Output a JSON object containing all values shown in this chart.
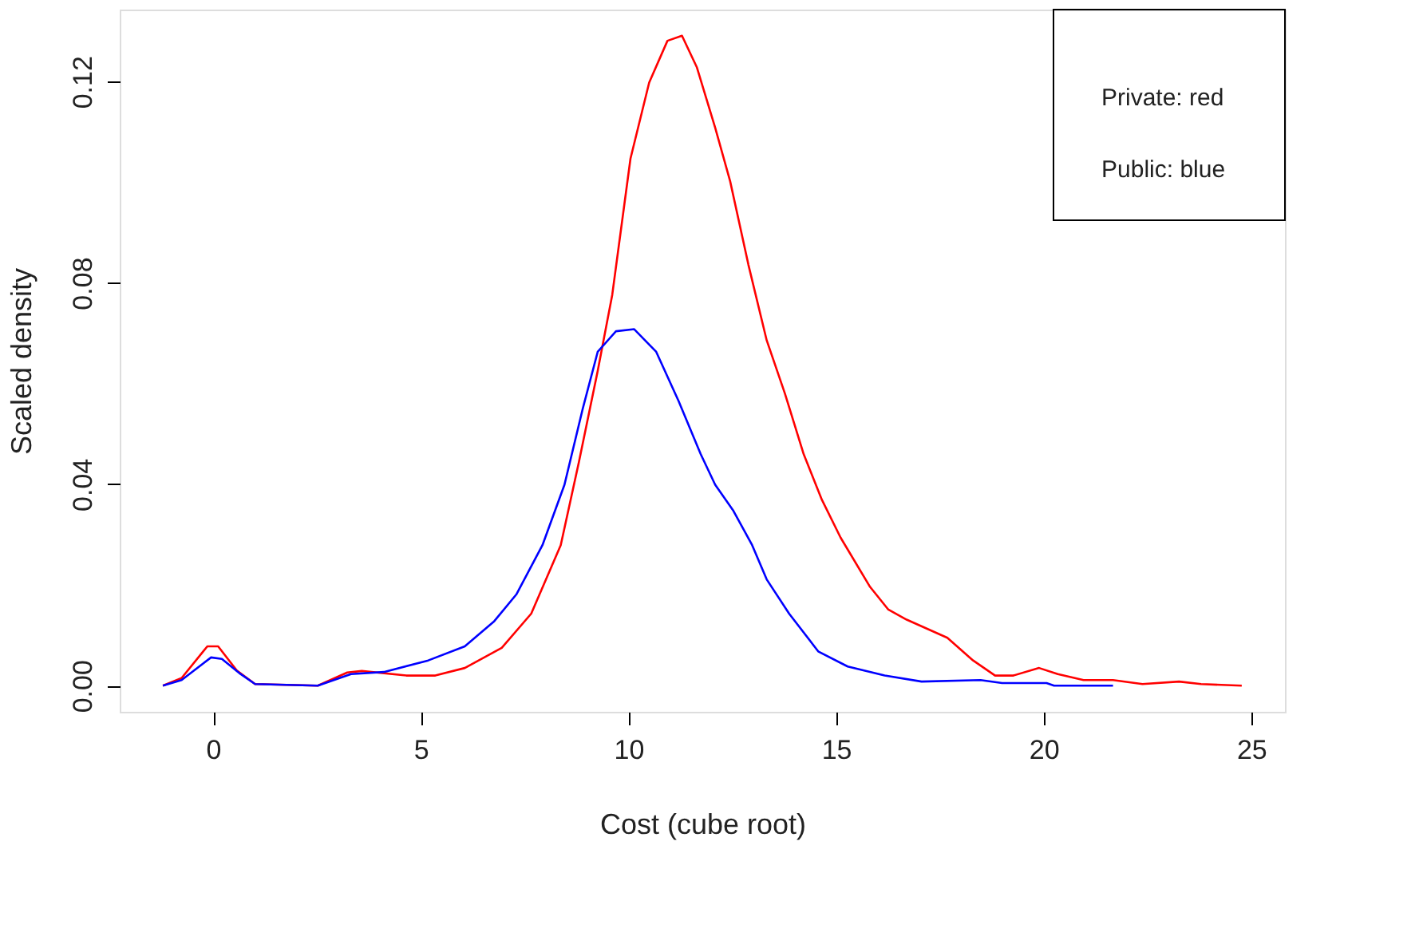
{
  "chart_data": {
    "type": "line",
    "xlabel": "Cost (cube root)",
    "ylabel": "Scaled density",
    "xlim": [
      -2.25,
      25.81
    ],
    "xticks": [
      0,
      5,
      10,
      15,
      20,
      25
    ],
    "ylim": [
      -0.0052,
      0.1343
    ],
    "yticks": [
      {
        "value": 0,
        "label": "0.00"
      },
      0.04,
      0.08,
      0.12
    ],
    "grid": false,
    "legend": false,
    "marker": "none",
    "line_style": "solid",
    "annotations": [
      "Private: red",
      "Public: blue"
    ],
    "series": [
      {
        "color": "#ff0000",
        "x": [
          -1.21,
          -0.76,
          -0.14,
          0.12,
          0.57,
          1.01,
          2.52,
          3.23,
          3.58,
          4.65,
          5.35,
          6.06,
          6.95,
          7.66,
          8.37,
          8.81,
          9.26,
          9.61,
          10.05,
          10.5,
          10.94,
          11.29,
          11.65,
          12.09,
          12.45,
          12.89,
          13.33,
          13.77,
          14.22,
          14.66,
          15.11,
          15.82,
          16.26,
          16.7,
          17.68,
          18.3,
          18.83,
          19.27,
          19.89,
          20.34,
          20.96,
          21.67,
          22.38,
          23.26,
          23.79,
          24.77
        ],
        "values": [
          0,
          0.0015,
          0.0078,
          0.0078,
          0.003,
          0.0003,
          0,
          0.0026,
          0.0029,
          0.002,
          0.002,
          0.0035,
          0.0075,
          0.0143,
          0.0279,
          0.0445,
          0.0625,
          0.0776,
          0.1047,
          0.1198,
          0.1281,
          0.1291,
          0.1228,
          0.1108,
          0.1002,
          0.0836,
          0.0686,
          0.058,
          0.046,
          0.0369,
          0.0294,
          0.0196,
          0.0151,
          0.0131,
          0.0095,
          0.005,
          0.002,
          0.002,
          0.0035,
          0.0023,
          0.0011,
          0.0011,
          0.0003,
          0.0008,
          0.0003,
          0
        ]
      },
      {
        "color": "#0000ff",
        "x": [
          -1.21,
          -0.76,
          -0.05,
          0.21,
          0.66,
          1.01,
          2.52,
          3.32,
          4.11,
          5.18,
          6.06,
          6.77,
          7.3,
          7.93,
          8.46,
          8.9,
          9.26,
          9.7,
          10.14,
          10.67,
          11.21,
          11.74,
          12.09,
          12.53,
          12.98,
          13.33,
          13.87,
          14.57,
          15.28,
          16.17,
          17.06,
          18.48,
          19.0,
          20.07,
          20.25,
          21.67
        ],
        "values": [
          0,
          0.0011,
          0.0056,
          0.0053,
          0.0023,
          0.0003,
          0,
          0.0023,
          0.0027,
          0.005,
          0.0078,
          0.0128,
          0.0181,
          0.0279,
          0.0399,
          0.055,
          0.0663,
          0.0704,
          0.0708,
          0.0663,
          0.0565,
          0.046,
          0.0399,
          0.0347,
          0.0279,
          0.0211,
          0.0143,
          0.0068,
          0.0038,
          0.002,
          0.0008,
          0.0011,
          0.0005,
          0.0005,
          0,
          0
        ]
      }
    ]
  }
}
